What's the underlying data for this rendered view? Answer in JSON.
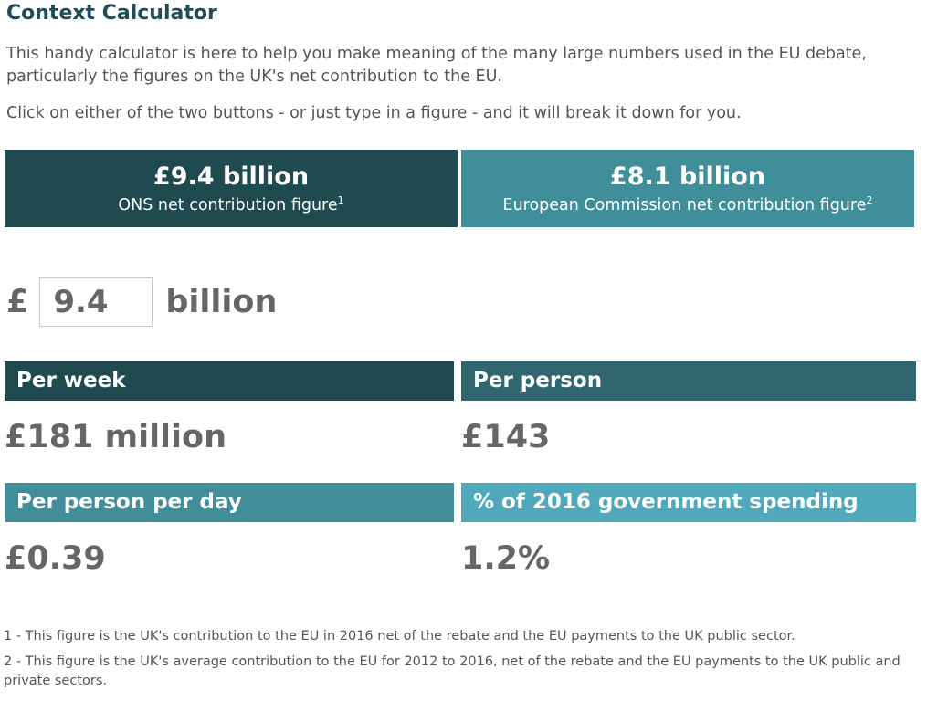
{
  "title": "Context Calculator",
  "intro": "This handy calculator is here to help you make meaning of the many large numbers used in the EU debate, particularly the figures on the UK's net contribution to the EU.",
  "instructions": "Click on either of the two buttons - or just type in a figure - and it will break it down for you.",
  "figures": [
    {
      "amount": "£9.4 billion",
      "label": "ONS net contribution figure",
      "footnote_ref": "1",
      "color": "#1f4a50"
    },
    {
      "amount": "£8.1 billion",
      "label": "European Commission net contribution figure",
      "footnote_ref": "2",
      "color": "#3f8e99"
    }
  ],
  "input": {
    "currency": "£",
    "value": "9.4",
    "unit": "billion"
  },
  "results": {
    "per_week": {
      "label": "Per week",
      "value": "£181 million",
      "color": "#1f4a50"
    },
    "per_person": {
      "label": "Per person",
      "value": "£143",
      "color": "#2f6670"
    },
    "per_person_per_day": {
      "label": "Per person per day",
      "value": "£0.39",
      "color": "#3f8e99"
    },
    "pct_spending": {
      "label": "% of 2016 government spending",
      "value": "1.2%",
      "color": "#4fa9bb"
    }
  },
  "footnotes": [
    "1 - This figure is the UK's contribution to the EU in 2016 net of the rebate and the EU payments to the UK public sector.",
    "2 - This figure is the UK's average contribution to the EU for 2012 to 2016, net of the rebate and the EU payments to the UK public and private sectors."
  ]
}
